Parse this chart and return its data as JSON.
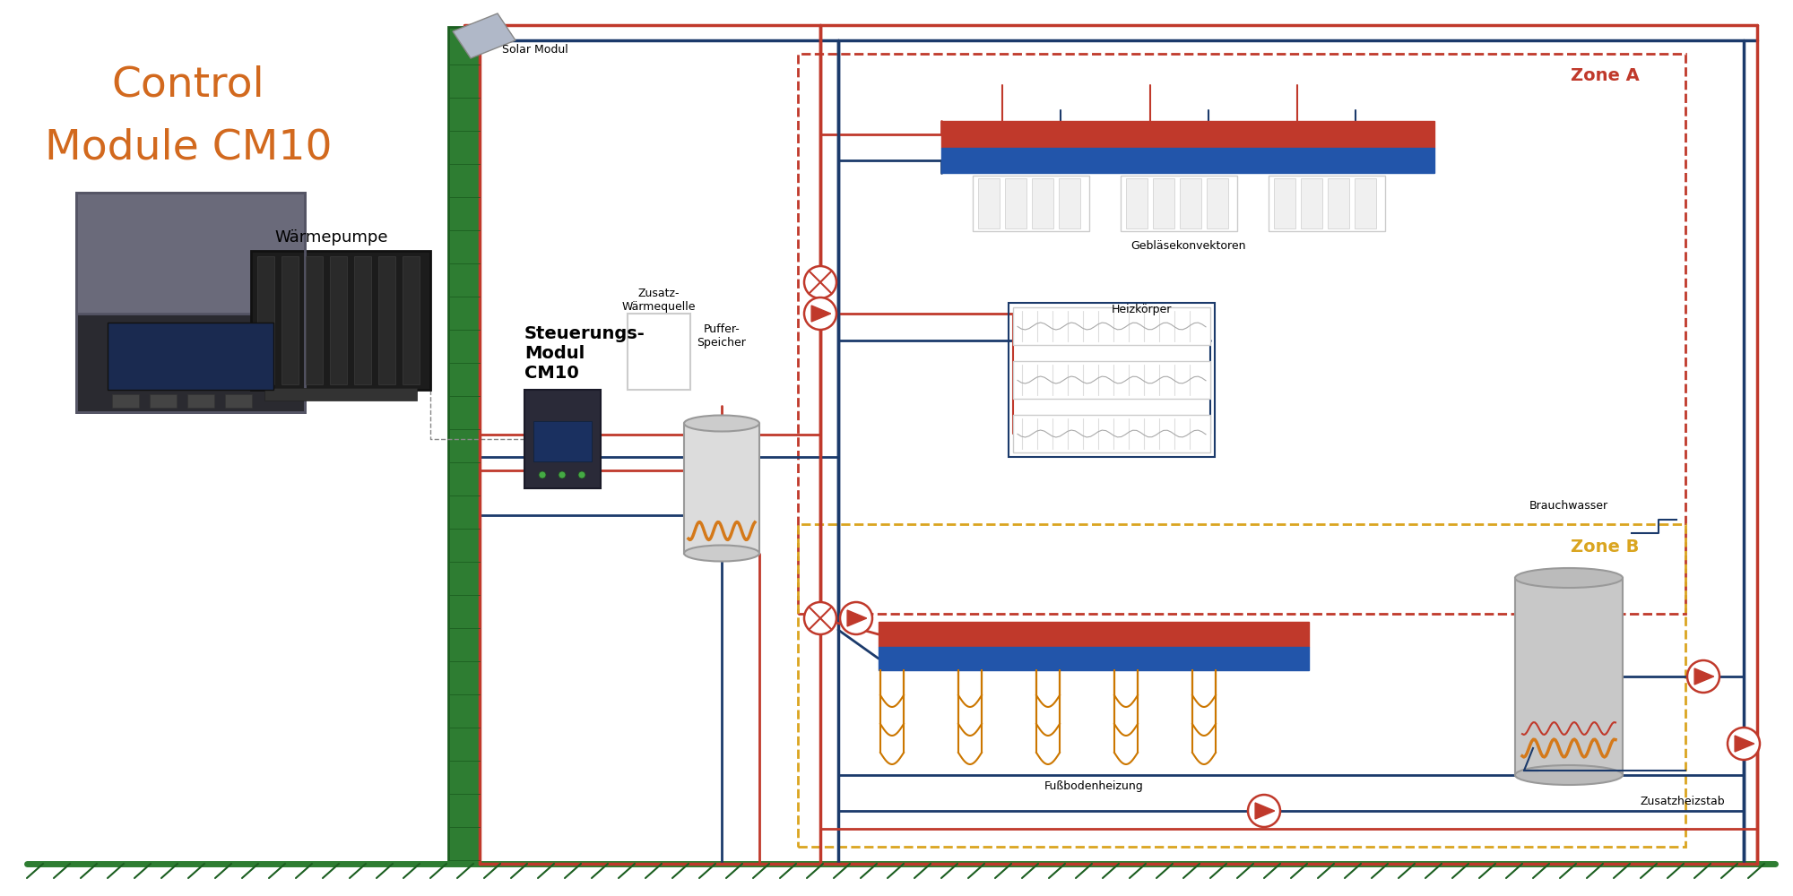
{
  "title_line1": "Control",
  "title_line2": "Module CM10",
  "title_color": "#D2691E",
  "bg_color": "#FFFFFF",
  "red": "#C0392B",
  "dark_red": "#8B0000",
  "blue": "#1B3A6B",
  "green": "#2E7D32",
  "dark_green": "#1B5E20",
  "yellow": "#DAA520",
  "gray": "#9E9E9E",
  "light_gray": "#DCDCDC",
  "orange": "#D4791A",
  "solar_label": "Solar Modul",
  "zusatz_label": "Zusatz-\nWärmequelle",
  "puffer_label": "Puffer-\nSpeicher",
  "steuerungs_label": "Steuerungs-\nModul\nCM10",
  "waermepumpe_label": "Wärmepumpe",
  "geblase_label": "Gebläsekonvektoren",
  "heizkoerper_label": "Heizkörper",
  "fussb_label": "Fußbodenheizung",
  "brauchwasser_label": "Brauchwasser",
  "zusatzheizstab_label": "Zusatzheizstab",
  "zone_a_label": "Zone A",
  "zone_b_label": "Zone B"
}
